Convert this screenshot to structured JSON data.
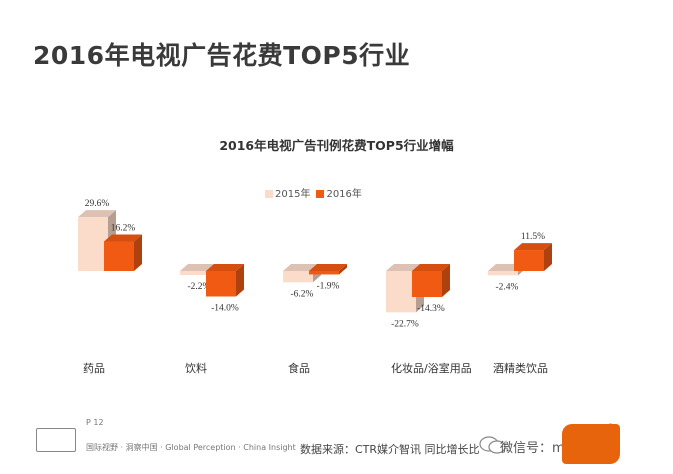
{
  "page": {
    "title": "2016年电视广告花费TOP5行业"
  },
  "chart_data": {
    "type": "bar",
    "title": "2016年电视广告刊例花费TOP5行业增幅",
    "categories": [
      "药品",
      "饮料",
      "食品",
      "化妆品/浴室用品",
      "酒精类饮品"
    ],
    "series": [
      {
        "name": "2015年",
        "values": [
          29.6,
          -2.2,
          -6.2,
          -22.7,
          -2.4
        ],
        "labels": [
          "29.6%",
          "-2.2%",
          "-6.2%",
          "-22.7%",
          "-2.4%"
        ],
        "color": "#fbdccb"
      },
      {
        "name": "2016年",
        "values": [
          16.2,
          -14.0,
          -1.9,
          -14.3,
          11.5
        ],
        "labels": [
          "16.2%",
          "-14.0%",
          "-1.9%",
          "-14.3%",
          "11.5%"
        ],
        "color": "#f15a12"
      }
    ],
    "legend_position": "top",
    "grid": false
  },
  "footer": {
    "page_number": "P 12",
    "tagline": "国际视野 · 洞察中国 · Global Perception · China Insight",
    "source": "数据来源：CTR媒介智讯   同比增长比",
    "watermark": "微信号：media",
    "brand_mark": "®"
  },
  "colors": {
    "brand": "#e8640c",
    "title": "#3a3a3a"
  }
}
